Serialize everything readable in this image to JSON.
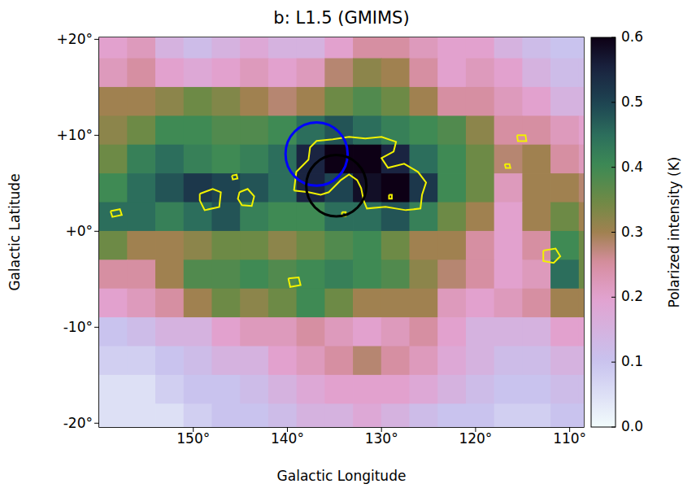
{
  "chart_data": {
    "type": "heatmap",
    "title": "b: L1.5 (GMIMS)",
    "x_label": "Galactic Longitude",
    "y_label": "Galactic Latitude",
    "xlim": [
      160,
      108.5
    ],
    "ylim": [
      -20.4,
      20.2
    ],
    "xticks": [
      {
        "value": 150,
        "label": "150°"
      },
      {
        "value": 140,
        "label": "140°"
      },
      {
        "value": 130,
        "label": "130°"
      },
      {
        "value": 120,
        "label": "120°"
      },
      {
        "value": 110,
        "label": "110°"
      }
    ],
    "yticks": [
      {
        "value": 20,
        "label": "+20°"
      },
      {
        "value": 10,
        "label": "+10°"
      },
      {
        "value": 0,
        "label": "+0°"
      },
      {
        "value": -10,
        "label": "-10°"
      },
      {
        "value": -20,
        "label": "-20°"
      }
    ],
    "grid": true,
    "x": [
      158.5,
      155.5,
      152.5,
      149.5,
      146.5,
      143.5,
      140.5,
      137.5,
      134.5,
      131.5,
      128.5,
      125.5,
      122.5,
      119.5,
      116.5,
      113.5,
      110.5,
      107.5
    ],
    "y": [
      19.5,
      16.5,
      13.5,
      10.5,
      7.5,
      4.5,
      1.5,
      -1.5,
      -4.5,
      -7.5,
      -10.5,
      -13.5,
      -16.5,
      -19.5
    ],
    "cells": [
      [
        0.2,
        0.22,
        0.15,
        0.12,
        0.15,
        0.18,
        0.15,
        0.15,
        0.2,
        0.25,
        0.25,
        0.22,
        0.2,
        0.2,
        0.15,
        0.12,
        0.1,
        0.1
      ],
      [
        0.22,
        0.25,
        0.2,
        0.18,
        0.2,
        0.22,
        0.2,
        0.22,
        0.28,
        0.32,
        0.3,
        0.25,
        0.2,
        0.22,
        0.2,
        0.15,
        0.12,
        0.12
      ],
      [
        0.3,
        0.3,
        0.32,
        0.35,
        0.33,
        0.3,
        0.28,
        0.3,
        0.35,
        0.38,
        0.35,
        0.3,
        0.25,
        0.25,
        0.22,
        0.2,
        0.15,
        0.15
      ],
      [
        0.32,
        0.35,
        0.4,
        0.4,
        0.38,
        0.38,
        0.4,
        0.45,
        0.48,
        0.45,
        0.42,
        0.4,
        0.38,
        0.32,
        0.25,
        0.25,
        0.22,
        0.2
      ],
      [
        0.35,
        0.42,
        0.45,
        0.42,
        0.4,
        0.42,
        0.45,
        0.55,
        0.6,
        0.6,
        0.55,
        0.45,
        0.4,
        0.35,
        0.28,
        0.3,
        0.25,
        0.22
      ],
      [
        0.4,
        0.45,
        0.48,
        0.52,
        0.5,
        0.48,
        0.45,
        0.55,
        0.5,
        0.58,
        0.6,
        0.52,
        0.4,
        0.35,
        0.22,
        0.3,
        0.3,
        0.28
      ],
      [
        0.45,
        0.45,
        0.42,
        0.45,
        0.48,
        0.42,
        0.4,
        0.4,
        0.45,
        0.45,
        0.48,
        0.42,
        0.35,
        0.3,
        0.2,
        0.3,
        0.35,
        0.3
      ],
      [
        0.35,
        0.3,
        0.3,
        0.32,
        0.35,
        0.35,
        0.32,
        0.35,
        0.38,
        0.4,
        0.35,
        0.3,
        0.3,
        0.25,
        0.2,
        0.25,
        0.4,
        0.35
      ],
      [
        0.25,
        0.25,
        0.3,
        0.38,
        0.38,
        0.4,
        0.38,
        0.4,
        0.42,
        0.4,
        0.38,
        0.32,
        0.28,
        0.25,
        0.2,
        0.22,
        0.45,
        0.35
      ],
      [
        0.2,
        0.22,
        0.25,
        0.3,
        0.35,
        0.32,
        0.35,
        0.4,
        0.35,
        0.3,
        0.3,
        0.3,
        0.22,
        0.2,
        0.22,
        0.25,
        0.3,
        0.3
      ],
      [
        0.1,
        0.12,
        0.15,
        0.15,
        0.2,
        0.22,
        0.22,
        0.25,
        0.22,
        0.2,
        0.22,
        0.25,
        0.2,
        0.15,
        0.15,
        0.15,
        0.2,
        0.2
      ],
      [
        0.08,
        0.08,
        0.1,
        0.12,
        0.15,
        0.15,
        0.2,
        0.22,
        0.25,
        0.28,
        0.25,
        0.22,
        0.18,
        0.15,
        0.12,
        0.12,
        0.15,
        0.15
      ],
      [
        0.05,
        0.05,
        0.08,
        0.1,
        0.1,
        0.12,
        0.15,
        0.18,
        0.2,
        0.2,
        0.2,
        0.18,
        0.15,
        0.12,
        0.1,
        0.1,
        0.12,
        0.12
      ],
      [
        0.05,
        0.05,
        0.05,
        0.08,
        0.1,
        0.1,
        0.12,
        0.15,
        0.15,
        0.18,
        0.15,
        0.12,
        0.1,
        0.1,
        0.08,
        0.08,
        0.1,
        0.1
      ]
    ],
    "colorbar": {
      "label": "Polarized intensity (K)",
      "range": [
        0,
        0.6
      ],
      "ticks": [
        {
          "value": 0,
          "label": "0.0"
        },
        0.1,
        0.2,
        0.3,
        0.4,
        0.5,
        0.6
      ]
    },
    "contours": [
      {
        "color": "#f2f200",
        "points": [
          [
            139.3,
            4.24
          ],
          [
            139.05,
            6.19
          ],
          [
            137.76,
            7.46
          ],
          [
            137.59,
            8.73
          ],
          [
            136.9,
            9.41
          ],
          [
            135.17,
            9.58
          ],
          [
            133.45,
            9.83
          ],
          [
            131.72,
            9.66
          ],
          [
            130.0,
            9.83
          ],
          [
            128.45,
            9.32
          ],
          [
            128.71,
            8.31
          ],
          [
            130.0,
            7.63
          ],
          [
            129.31,
            6.61
          ],
          [
            127.59,
            7.03
          ],
          [
            126.12,
            6.19
          ],
          [
            125.26,
            5.08
          ],
          [
            125.69,
            3.81
          ],
          [
            125.86,
            2.37
          ],
          [
            127.41,
            2.2
          ],
          [
            129.57,
            2.54
          ],
          [
            131.55,
            2.37
          ],
          [
            131.9,
            3.22
          ],
          [
            132.16,
            4.49
          ],
          [
            132.59,
            5.34
          ],
          [
            133.45,
            5.93
          ],
          [
            134.31,
            5.34
          ],
          [
            135.6,
            4.07
          ],
          [
            136.47,
            3.81
          ],
          [
            137.76,
            4.07
          ],
          [
            139.3,
            4.24
          ]
        ]
      },
      {
        "color": "#f2f200",
        "points": [
          [
            149.31,
            3.9
          ],
          [
            147.93,
            4.41
          ],
          [
            147.07,
            4.07
          ],
          [
            147.24,
            2.54
          ],
          [
            148.79,
            2.2
          ],
          [
            149.31,
            3.22
          ],
          [
            149.31,
            3.9
          ]
        ]
      },
      {
        "color": "#f2f200",
        "points": [
          [
            145.09,
            4.07
          ],
          [
            144.22,
            4.41
          ],
          [
            143.53,
            3.64
          ],
          [
            143.79,
            2.63
          ],
          [
            144.83,
            2.71
          ],
          [
            145.26,
            3.39
          ],
          [
            145.09,
            4.07
          ]
        ]
      },
      {
        "color": "#f2f200",
        "points": [
          [
            145.9,
            5.8
          ],
          [
            145.4,
            5.9
          ],
          [
            145.3,
            5.5
          ],
          [
            145.8,
            5.4
          ],
          [
            145.9,
            5.8
          ]
        ]
      },
      {
        "color": "#f2f200",
        "points": [
          [
            158.8,
            2.1
          ],
          [
            157.8,
            2.3
          ],
          [
            157.6,
            1.7
          ],
          [
            158.6,
            1.5
          ],
          [
            158.8,
            2.1
          ]
        ]
      },
      {
        "color": "#f2f200",
        "points": [
          [
            139.9,
            -4.9
          ],
          [
            138.8,
            -4.8
          ],
          [
            138.6,
            -5.6
          ],
          [
            139.7,
            -5.8
          ],
          [
            139.9,
            -4.9
          ]
        ]
      },
      {
        "color": "#f2f200",
        "points": [
          [
            115.6,
            10.0
          ],
          [
            114.7,
            10.0
          ],
          [
            114.6,
            9.4
          ],
          [
            115.5,
            9.4
          ],
          [
            115.6,
            10.0
          ]
        ]
      },
      {
        "color": "#f2f200",
        "points": [
          [
            116.9,
            7.0
          ],
          [
            116.4,
            7.0
          ],
          [
            116.3,
            6.6
          ],
          [
            116.8,
            6.6
          ],
          [
            116.9,
            7.0
          ]
        ]
      },
      {
        "color": "#f2f200",
        "points": [
          [
            112.8,
            -2.0
          ],
          [
            111.5,
            -1.8
          ],
          [
            111.0,
            -2.6
          ],
          [
            111.7,
            -3.3
          ],
          [
            112.8,
            -3.1
          ],
          [
            112.8,
            -2.0
          ]
        ]
      },
      {
        "color": "#f2f200",
        "points": [
          [
            134.2,
            2.0
          ],
          [
            133.8,
            2.0
          ],
          [
            133.8,
            1.6
          ],
          [
            134.2,
            1.6
          ],
          [
            134.2,
            2.0
          ]
        ]
      },
      {
        "color": "#f2f200",
        "points": [
          [
            129.2,
            3.8
          ],
          [
            128.9,
            3.8
          ],
          [
            128.9,
            3.4
          ],
          [
            129.2,
            3.4
          ],
          [
            129.2,
            3.8
          ]
        ]
      }
    ],
    "circles": [
      {
        "center": [
          136.9,
          8.05
        ],
        "radius": 3.3,
        "color": "#0000ff"
      },
      {
        "center": [
          134.8,
          4.75
        ],
        "radius": 3.2,
        "color": "#000000"
      }
    ]
  }
}
